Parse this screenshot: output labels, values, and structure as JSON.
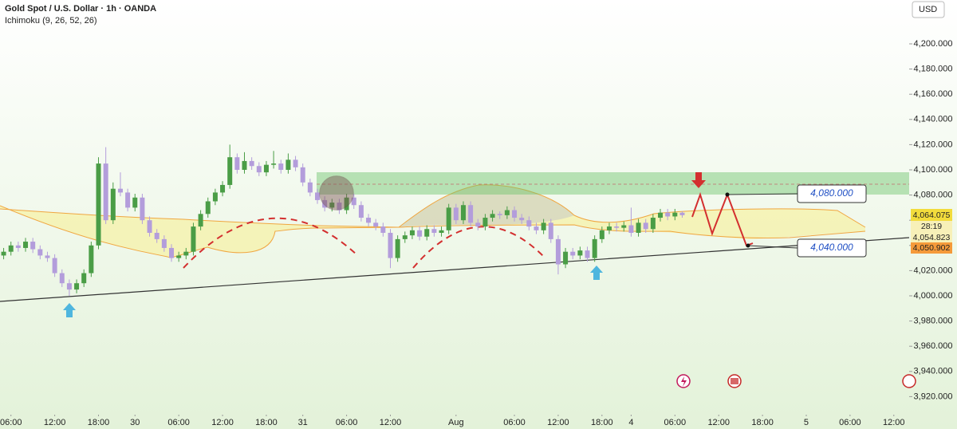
{
  "header": {
    "title": "Gold Spot / U.S. Dollar · 1h · OANDA",
    "indicator": "Ichimoku (9, 26, 52, 26)",
    "currency": "USD"
  },
  "chart_data": {
    "type": "candlestick",
    "up_color": "#4a9d46",
    "down_color": "#b39ddb",
    "open": [
      4032,
      4035,
      4040,
      4038,
      4043,
      4037,
      4032,
      4030,
      4018,
      4010,
      4005,
      4010,
      4018,
      4040,
      4105,
      4060,
      4085,
      4082,
      4070,
      4078,
      4060,
      4050,
      4045,
      4038,
      4030,
      4032,
      4035,
      4055,
      4065,
      4075,
      4082,
      4088,
      4110,
      4100,
      4107,
      4103,
      4098,
      4104,
      4105,
      4100,
      4108,
      4102,
      4090,
      4082,
      4076,
      4070,
      4074,
      4068,
      4078,
      4072,
      4062,
      4058,
      4055,
      4050,
      4030,
      4045,
      4048,
      4052,
      4047,
      4053,
      4050,
      4052,
      4070,
      4060,
      4072,
      4058,
      4055,
      4062,
      4065,
      4064,
      4068,
      4062,
      4060,
      4055,
      4052,
      4058,
      4045,
      4025,
      4035,
      4032,
      4036,
      4030,
      4045,
      4052,
      4055,
      4054,
      4056,
      4050,
      4058,
      4053,
      4062,
      4066,
      4063,
      4066
    ],
    "high": [
      4038,
      4043,
      4043,
      4046,
      4046,
      4040,
      4035,
      4033,
      4021,
      4013,
      4013,
      4021,
      4043,
      4110,
      4118,
      4090,
      4098,
      4085,
      4081,
      4081,
      4063,
      4053,
      4048,
      4041,
      4035,
      4038,
      4058,
      4068,
      4078,
      4085,
      4091,
      4120,
      4113,
      4114,
      4110,
      4106,
      4107,
      4115,
      4108,
      4113,
      4111,
      4105,
      4093,
      4085,
      4079,
      4077,
      4077,
      4081,
      4081,
      4075,
      4065,
      4061,
      4058,
      4053,
      4048,
      4051,
      4055,
      4055,
      4056,
      4056,
      4055,
      4073,
      4073,
      4075,
      4075,
      4061,
      4065,
      4068,
      4067,
      4071,
      4071,
      4065,
      4063,
      4058,
      4061,
      4061,
      4048,
      4038,
      4038,
      4039,
      4039,
      4048,
      4055,
      4058,
      4058,
      4059,
      4070,
      4061,
      4061,
      4065,
      4069,
      4069,
      4069,
      4067
    ],
    "low": [
      4029,
      4032,
      4035,
      4035,
      4034,
      4029,
      4027,
      4015,
      4007,
      4000,
      4002,
      4007,
      4015,
      4037,
      4057,
      4057,
      4079,
      4067,
      4067,
      4057,
      4047,
      4042,
      4035,
      4027,
      4027,
      4029,
      4032,
      4052,
      4062,
      4072,
      4079,
      4085,
      4097,
      4097,
      4100,
      4095,
      4095,
      4101,
      4097,
      4097,
      4099,
      4087,
      4079,
      4073,
      4067,
      4067,
      4065,
      4065,
      4069,
      4059,
      4055,
      4052,
      4047,
      4022,
      4027,
      4042,
      4045,
      4044,
      4044,
      4047,
      4047,
      4049,
      4057,
      4057,
      4055,
      4052,
      4052,
      4059,
      4061,
      4061,
      4059,
      4057,
      4052,
      4049,
      4049,
      4042,
      4017,
      4022,
      4029,
      4029,
      4027,
      4027,
      4042,
      4049,
      4051,
      4051,
      4047,
      4047,
      4050,
      4050,
      4059,
      4060,
      4060,
      4062
    ],
    "close": [
      4035,
      4040,
      4038,
      4043,
      4037,
      4032,
      4030,
      4018,
      4010,
      4005,
      4010,
      4018,
      4040,
      4105,
      4060,
      4085,
      4082,
      4070,
      4078,
      4060,
      4050,
      4045,
      4038,
      4030,
      4032,
      4035,
      4055,
      4065,
      4075,
      4082,
      4088,
      4110,
      4100,
      4107,
      4103,
      4098,
      4104,
      4105,
      4100,
      4108,
      4102,
      4090,
      4082,
      4076,
      4070,
      4074,
      4068,
      4078,
      4072,
      4062,
      4058,
      4055,
      4050,
      4030,
      4045,
      4048,
      4052,
      4047,
      4053,
      4050,
      4052,
      4070,
      4060,
      4072,
      4058,
      4055,
      4062,
      4065,
      4064,
      4068,
      4062,
      4060,
      4055,
      4052,
      4058,
      4045,
      4025,
      4035,
      4032,
      4036,
      4030,
      4045,
      4052,
      4055,
      4054,
      4056,
      4050,
      4058,
      4053,
      4062,
      4066,
      4063,
      4066,
      4064
    ],
    "xlim": [
      -0.5,
      124.1
    ],
    "xticks": [
      {
        "value": 1,
        "label": "06:00"
      },
      {
        "value": 7,
        "label": "12:00"
      },
      {
        "value": 13,
        "label": "18:00"
      },
      {
        "value": 18,
        "label": "30"
      },
      {
        "value": 24,
        "label": "06:00"
      },
      {
        "value": 30,
        "label": "12:00"
      },
      {
        "value": 36,
        "label": "18:00"
      },
      {
        "value": 41,
        "label": "31"
      },
      {
        "value": 47,
        "label": "06:00"
      },
      {
        "value": 53,
        "label": "12:00"
      },
      {
        "value": 62,
        "label": "Aug"
      },
      {
        "value": 70,
        "label": "06:00"
      },
      {
        "value": 76,
        "label": "12:00"
      },
      {
        "value": 82,
        "label": "18:00"
      },
      {
        "value": 86,
        "label": "4"
      },
      {
        "value": 92,
        "label": "06:00"
      },
      {
        "value": 98,
        "label": "12:00"
      },
      {
        "value": 104,
        "label": "18:00"
      },
      {
        "value": 110,
        "label": "5"
      },
      {
        "value": 116,
        "label": "06:00"
      },
      {
        "value": 122,
        "label": "12:00"
      }
    ],
    "ylim": [
      3894.3,
      4234.8
    ],
    "yticks": [
      {
        "value": 3920,
        "label": "3,920.000"
      },
      {
        "value": 3940,
        "label": "3,940.000"
      },
      {
        "value": 3960,
        "label": "3,960.000"
      },
      {
        "value": 3980,
        "label": "3,980.000"
      },
      {
        "value": 4000,
        "label": "4,000.000"
      },
      {
        "value": 4020,
        "label": "4,020.000"
      },
      {
        "value": 4040,
        "label": "4,040.000"
      },
      {
        "value": 4060,
        "label": "4,060.000"
      },
      {
        "value": 4080,
        "label": "4,080.000"
      },
      {
        "value": 4100,
        "label": "4,100.000"
      },
      {
        "value": 4120,
        "label": "4,120.000"
      },
      {
        "value": 4140,
        "label": "4,140.000"
      },
      {
        "value": 4160,
        "label": "4,160.000"
      },
      {
        "value": 4180,
        "label": "4,180.000"
      },
      {
        "value": 4200,
        "label": "4,200.000"
      }
    ]
  },
  "price_tags": [
    "4,064.075",
    "28:19",
    "4,054.823",
    "4,050.902"
  ],
  "levels": [
    "4,080.000",
    "4,040.000"
  ]
}
